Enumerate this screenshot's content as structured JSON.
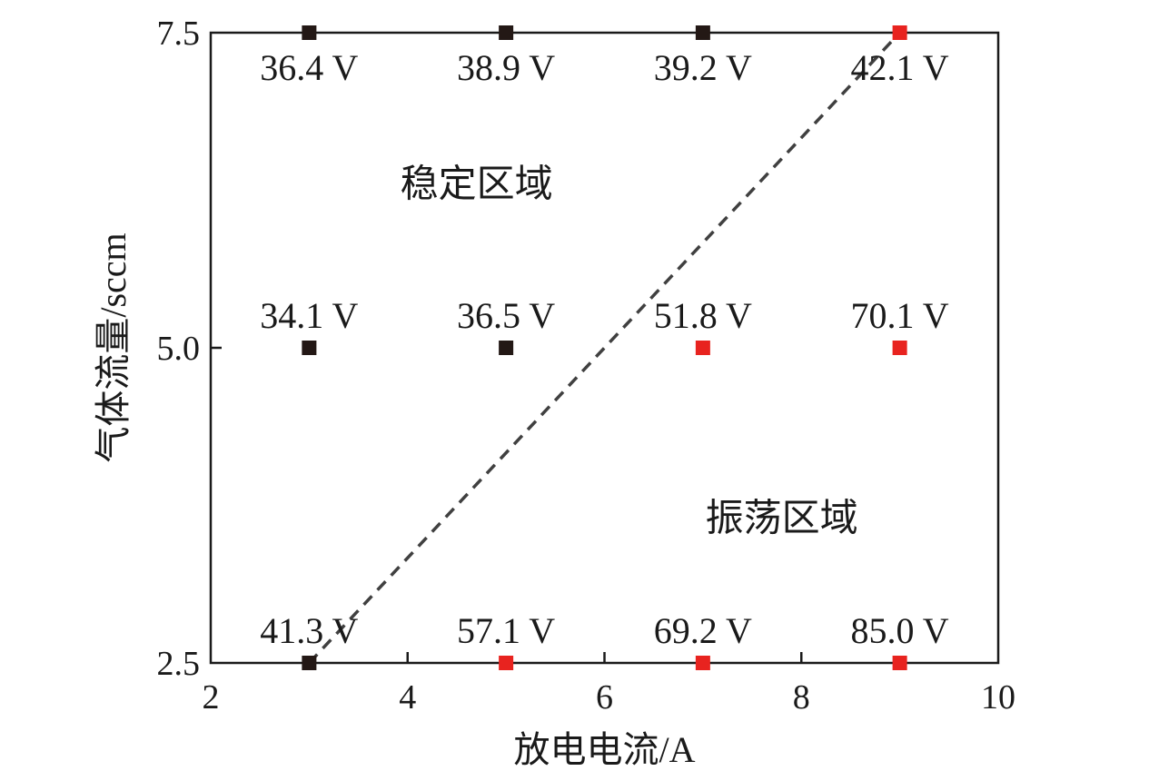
{
  "chart_data": {
    "type": "scatter",
    "title": "",
    "xlabel": "放电电流/A",
    "ylabel": "气体流量/sccm",
    "xlim": [
      2,
      10
    ],
    "ylim": [
      2.5,
      7.5
    ],
    "xticks": [
      "2",
      "4",
      "6",
      "8",
      "10"
    ],
    "yticks": [
      "2.5",
      "5.0",
      "7.5"
    ],
    "grid": false,
    "legend": "none",
    "colors": {
      "stable": "#231815",
      "oscillating": "#e8231f",
      "boundary": "#404040"
    },
    "points": [
      {
        "x": 3,
        "y": 7.5,
        "label": "36.4 V",
        "state": "stable"
      },
      {
        "x": 5,
        "y": 7.5,
        "label": "38.9 V",
        "state": "stable"
      },
      {
        "x": 7,
        "y": 7.5,
        "label": "39.2 V",
        "state": "stable"
      },
      {
        "x": 9,
        "y": 7.5,
        "label": "42.1 V",
        "state": "oscillating"
      },
      {
        "x": 3,
        "y": 5.0,
        "label": "34.1 V",
        "state": "stable"
      },
      {
        "x": 5,
        "y": 5.0,
        "label": "36.5 V",
        "state": "stable"
      },
      {
        "x": 7,
        "y": 5.0,
        "label": "51.8 V",
        "state": "oscillating"
      },
      {
        "x": 9,
        "y": 5.0,
        "label": "70.1 V",
        "state": "oscillating"
      },
      {
        "x": 3,
        "y": 2.5,
        "label": "41.3 V",
        "state": "stable"
      },
      {
        "x": 5,
        "y": 2.5,
        "label": "57.1 V",
        "state": "oscillating"
      },
      {
        "x": 7,
        "y": 2.5,
        "label": "69.2 V",
        "state": "oscillating"
      },
      {
        "x": 9,
        "y": 2.5,
        "label": "85.0 V",
        "state": "oscillating"
      }
    ],
    "boundary_line": {
      "style": "dashed",
      "points": [
        [
          3,
          2.5
        ],
        [
          9,
          7.5
        ]
      ]
    },
    "annotations": [
      {
        "text": "稳定区域",
        "x": 4.7,
        "y": 6.2,
        "region": "stable"
      },
      {
        "text": "振荡区域",
        "x": 7.8,
        "y": 3.55,
        "region": "oscillating"
      }
    ]
  }
}
